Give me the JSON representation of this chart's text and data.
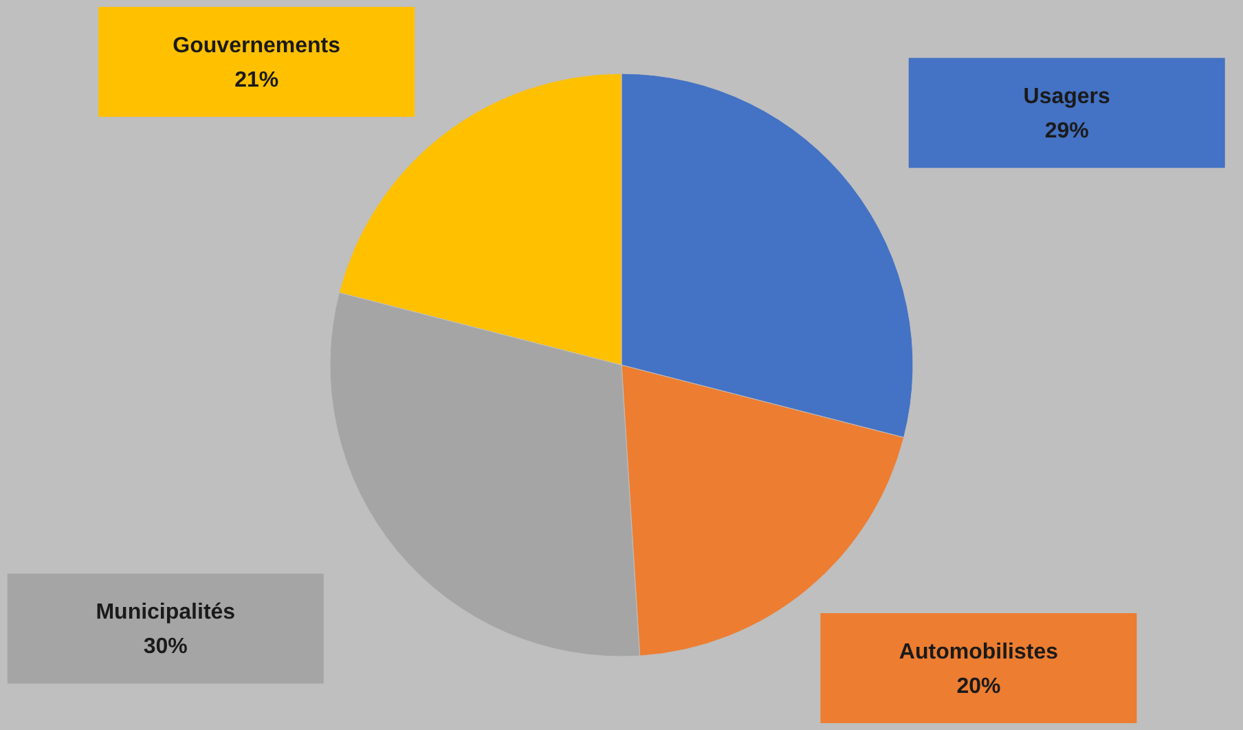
{
  "chart_data": {
    "type": "pie",
    "categories": [
      "Usagers",
      "Automobilistes",
      "Municipalités",
      "Gouvernements"
    ],
    "values": [
      29,
      20,
      30,
      21
    ],
    "colors": [
      "#4472c4",
      "#ed7d31",
      "#a5a5a5",
      "#ffc000"
    ],
    "value_labels": [
      "29%",
      "20%",
      "30%",
      "21%"
    ]
  }
}
